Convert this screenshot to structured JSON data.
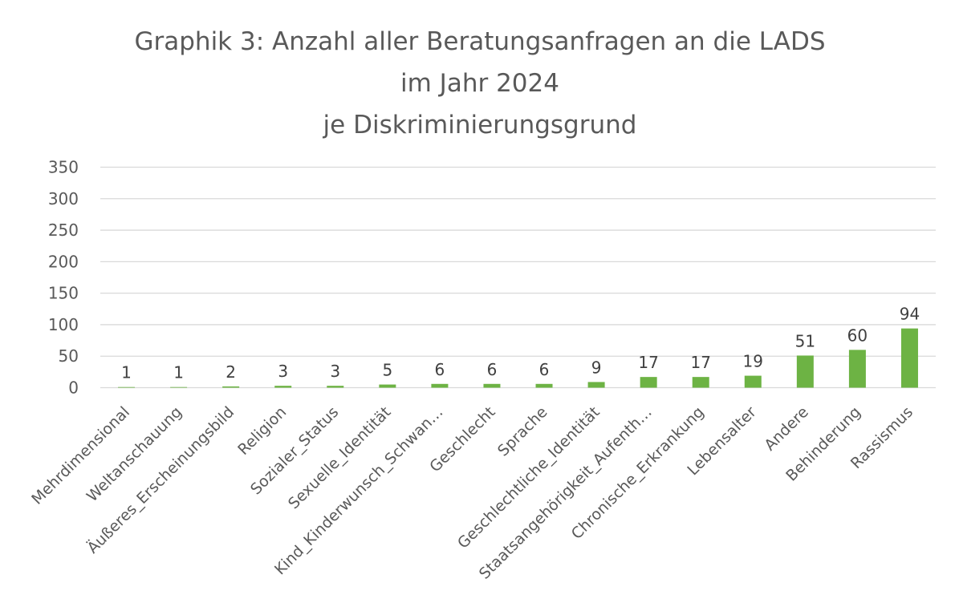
{
  "chart_data": {
    "type": "bar",
    "title_lines": [
      "Graphik 3: Anzahl aller Beratungsanfragen an die LADS",
      "im Jahr 2024",
      "je Diskriminierungsgrund"
    ],
    "categories": [
      "Mehrdimensional",
      "Weltanschauung",
      "Äußeres_Erscheinungsbild",
      "Religion",
      "Sozialer_Status",
      "Sexuelle_Identität",
      "Kind_Kinderwunsch_Schwan…",
      "Geschlecht",
      "Sprache",
      "Geschlechtliche_Identität",
      "Staatsangehörigkeit_Aufenth…",
      "Chronische_Erkrankung",
      "Lebensalter",
      "Andere",
      "Behinderung",
      "Rassismus"
    ],
    "values": [
      1,
      1,
      2,
      3,
      3,
      5,
      6,
      6,
      6,
      9,
      17,
      17,
      19,
      51,
      60,
      94
    ],
    "data_labels": [
      "1",
      "1",
      "2",
      "3",
      "3",
      "5",
      "6",
      "6",
      "6",
      "9",
      "17",
      "17",
      "19",
      "51",
      "60",
      "94"
    ],
    "ylim": [
      0,
      350
    ],
    "yticks": [
      "0",
      "50",
      "100",
      "150",
      "200",
      "250",
      "300",
      "350"
    ],
    "ytick_values": [
      0,
      50,
      100,
      150,
      200,
      250,
      300,
      350
    ],
    "xlabel": "",
    "ylabel": "",
    "grid": true,
    "legend": "none",
    "bar_color": "#6db344",
    "text_color": "#595959",
    "grid_color": "#d9d9d9"
  }
}
